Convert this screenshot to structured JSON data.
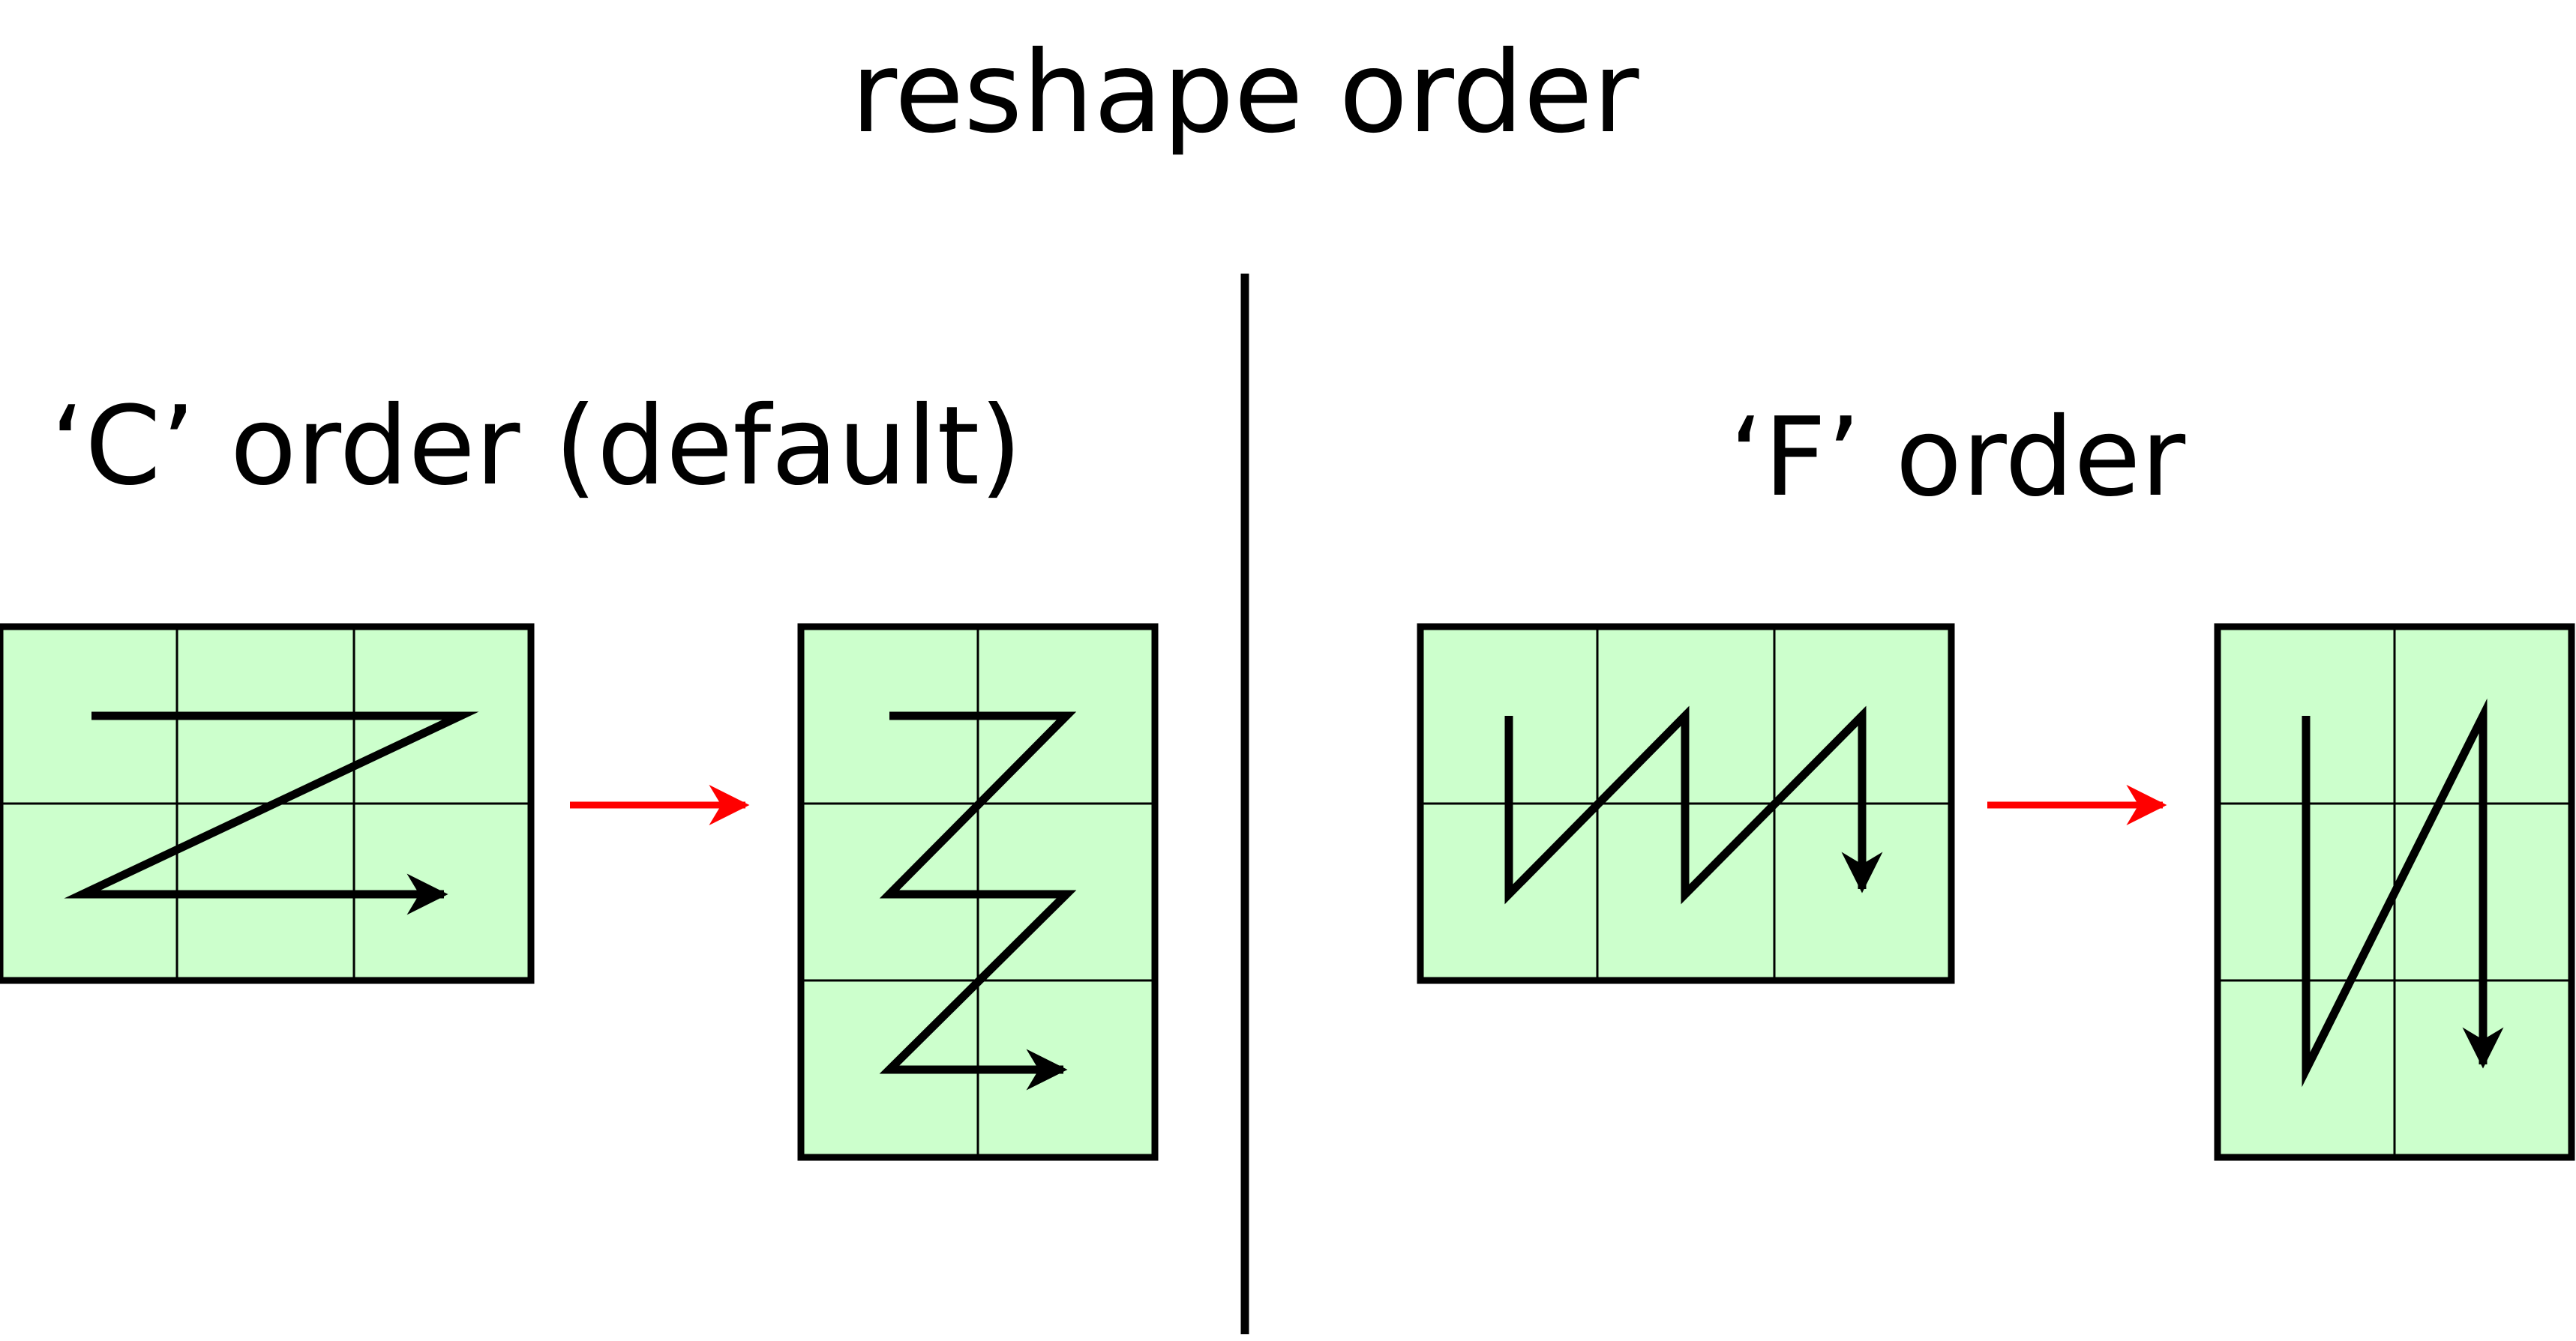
{
  "title": "reshape order",
  "sections": {
    "c_order": {
      "label": "‘C’ order (default)"
    },
    "f_order": {
      "label": "‘F’ order"
    }
  },
  "colors": {
    "cell_fill": "#ccffcc",
    "stroke": "#000000",
    "reshape_arrow": "#ff0000"
  },
  "icons": {
    "traversal_arrow": "arrowhead",
    "reshape_arrow": "red-right-arrow"
  },
  "grids": {
    "c_source": {
      "rows": 2,
      "cols": 3
    },
    "c_target": {
      "rows": 3,
      "cols": 2
    },
    "f_source": {
      "rows": 2,
      "cols": 3
    },
    "f_target": {
      "rows": 3,
      "cols": 2
    }
  }
}
